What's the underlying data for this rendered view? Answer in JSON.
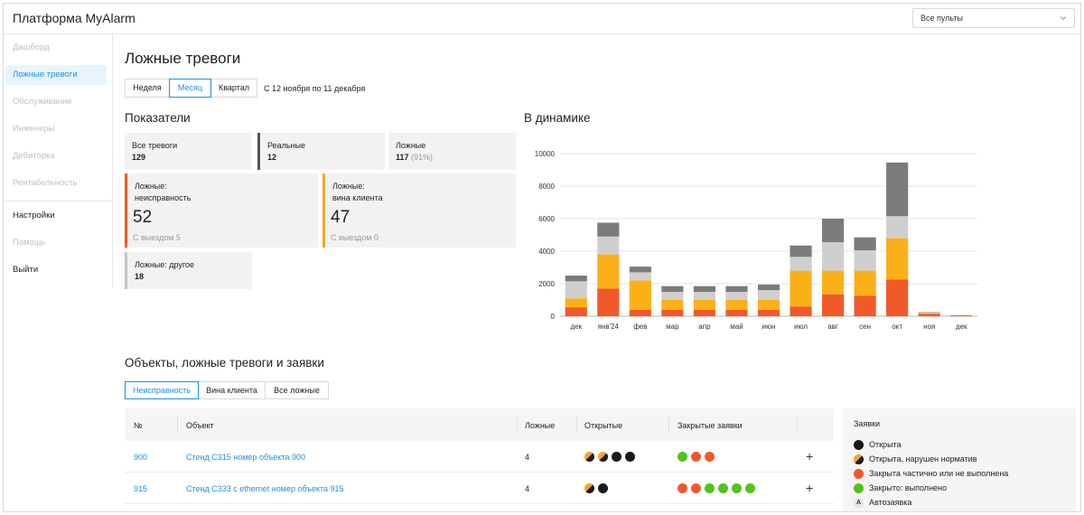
{
  "header": {
    "app_title": "Платформа MyAlarm",
    "console_select": "Все пульты"
  },
  "sidebar": {
    "items": [
      {
        "label": "Дашборд",
        "state": "disabled"
      },
      {
        "label": "Ложные тревоги",
        "state": "active"
      },
      {
        "label": "Обслуживание",
        "state": "disabled"
      },
      {
        "label": "Инженеры",
        "state": "disabled"
      },
      {
        "label": "Дебиторка",
        "state": "disabled"
      },
      {
        "label": "Рентабельность",
        "state": "disabled"
      },
      {
        "label": "Настройки",
        "state": "enabled"
      },
      {
        "label": "Помощь",
        "state": "disabled"
      },
      {
        "label": "Выйти",
        "state": "enabled"
      }
    ]
  },
  "page": {
    "title": "Ложные тревоги",
    "periods": [
      "Неделя",
      "Месяц",
      "Квартал"
    ],
    "active_period": "Месяц",
    "range": "С 12 ноября по 11 декабря"
  },
  "indicators": {
    "title": "Показатели",
    "all": {
      "label": "Все тревоги",
      "value": "129"
    },
    "real": {
      "label": "Реальные",
      "value": "12"
    },
    "false": {
      "label": "Ложные",
      "value": "117",
      "pct": "(91%)"
    },
    "fault": {
      "label1": "Ложные:",
      "label2": "неисправность",
      "value": "52",
      "sub": "С выездом 5"
    },
    "client": {
      "label1": "Ложные:",
      "label2": "вина клиента",
      "value": "47",
      "sub": "С выездом 0"
    },
    "other": {
      "label": "Ложные: другое",
      "value": "18"
    }
  },
  "dynamics": {
    "title": "В динамике"
  },
  "chart_data": {
    "type": "bar",
    "stacked": true,
    "categories": [
      "дек",
      "янв'24",
      "фев",
      "мар",
      "апр",
      "май",
      "июн",
      "июл",
      "авг",
      "сен",
      "окт",
      "ноя",
      "дек"
    ],
    "series": [
      {
        "color": "#f05a28",
        "values": [
          550,
          1700,
          400,
          400,
          400,
          400,
          400,
          600,
          1350,
          1250,
          2250,
          150,
          50
        ]
      },
      {
        "color": "#fbb018",
        "values": [
          550,
          2100,
          1800,
          600,
          600,
          600,
          600,
          2200,
          1450,
          1550,
          2550,
          60,
          20
        ]
      },
      {
        "color": "#cfcfcf",
        "values": [
          1050,
          1100,
          500,
          500,
          500,
          500,
          600,
          850,
          1750,
          1250,
          1350,
          30,
          10
        ]
      },
      {
        "color": "#7b7b7b",
        "values": [
          350,
          850,
          350,
          350,
          350,
          350,
          350,
          700,
          1450,
          800,
          3300,
          20,
          0
        ]
      }
    ],
    "yticks": [
      0,
      2000,
      4000,
      6000,
      8000,
      10000
    ],
    "ylim": [
      0,
      10000
    ],
    "grid": true
  },
  "objects": {
    "title": "Объекты, ложные тревоги и заявки",
    "tabs": [
      "Неисправность",
      "Вина клиента",
      "Все ложные"
    ],
    "active_tab": "Неисправность",
    "columns": [
      "№",
      "Объект",
      "Ложные",
      "Открытые",
      "Закрытые заявки"
    ],
    "rows": [
      {
        "num": "900",
        "object": "Стенд С315 номер объекта 900",
        "false_count": "4",
        "open": [
          "viol",
          "viol",
          "black",
          "black"
        ],
        "closed": [
          "green",
          "red",
          "red"
        ]
      },
      {
        "num": "915",
        "object": "Стенд С333 с ethernet номер объекта 915",
        "false_count": "4",
        "open": [
          "viol",
          "black"
        ],
        "closed": [
          "red",
          "red",
          "green",
          "green",
          "green",
          "green"
        ]
      }
    ],
    "add_label": "+"
  },
  "legend": {
    "title": "Заявки",
    "items": [
      {
        "kind": "black",
        "label": "Открыта"
      },
      {
        "kind": "viol",
        "label": "Открыта, нарушен норматив"
      },
      {
        "kind": "red",
        "label": "Закрыта частично или не выполнена"
      },
      {
        "kind": "green",
        "label": "Закрыто: выполнено"
      },
      {
        "kind": "auto",
        "badge": "A",
        "label": "Автозаявка"
      }
    ]
  }
}
